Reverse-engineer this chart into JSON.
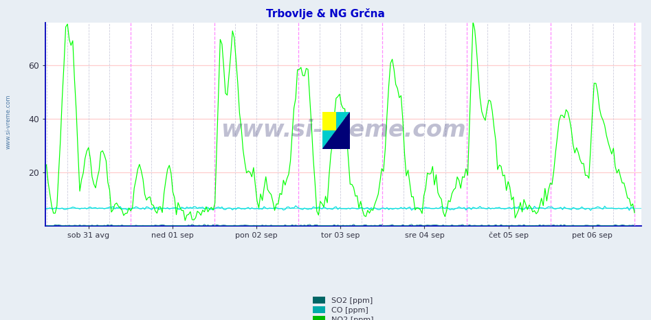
{
  "title": "Trbovlje & NG Grčna",
  "title_color": "#0000cc",
  "bg_color": "#e8eef4",
  "plot_bg_color": "#ffffff",
  "ylim": [
    0,
    76
  ],
  "yticks": [
    20,
    40,
    60
  ],
  "xtick_labels": [
    "sob 31 avg",
    "ned 01 sep",
    "pon 02 sep",
    "tor 03 sep",
    "sre 04 sep",
    "čet 05 sep",
    "pet 06 sep"
  ],
  "hgrid_color": "#ffcccc",
  "vgrid_color": "#ccccdd",
  "day_line_color": "#ff88ff",
  "axis_color": "#0000bb",
  "tick_color": "#333344",
  "line_color_no2": "#00ff00",
  "line_color_co": "#00dddd",
  "line_color_so2": "#008888",
  "watermark": "www.si-vreme.com",
  "watermark_color": "#1a1a5e",
  "left_label": "www.si-vreme.com",
  "n_points": 336,
  "co_baseline": 6.5,
  "legend_so2_color_1": "#006666",
  "legend_co_color_1": "#00aaaa",
  "legend_no2_color_1": "#00bb00",
  "legend_so2_color_2": "#006666",
  "legend_co_color_2": "#00cccc",
  "legend_no2_color_2": "#00dd00"
}
